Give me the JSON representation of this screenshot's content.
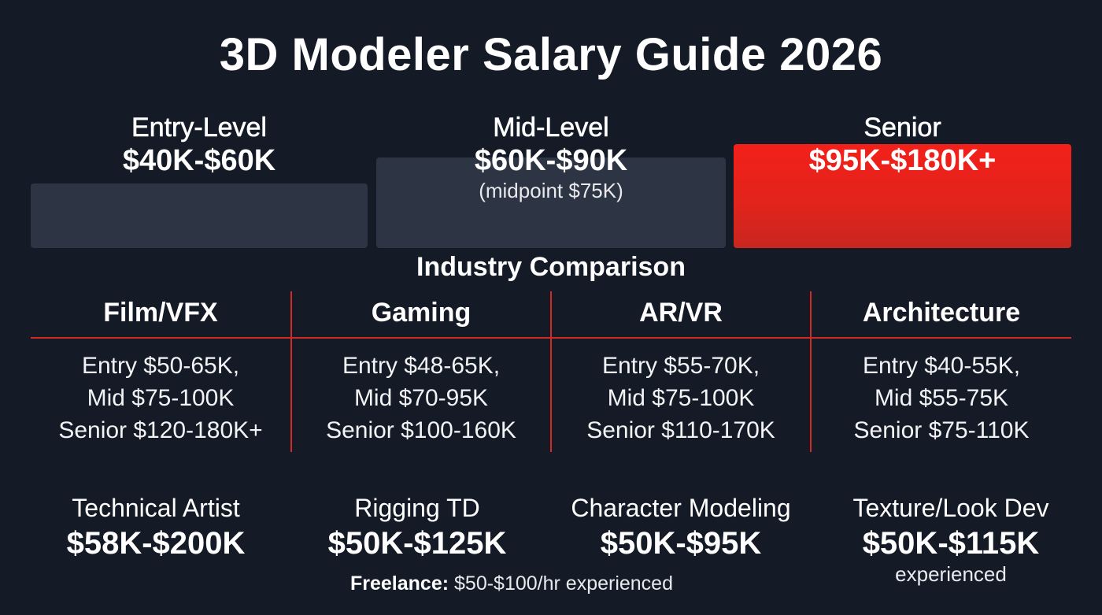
{
  "title": "3D Modeler Salary Guide 2026",
  "tiers": {
    "entry": {
      "name": "Entry-Level",
      "range": "$40K-$60K",
      "color": "#2d3443"
    },
    "mid": {
      "name": "Mid-Level",
      "range": "$60K-$90K",
      "note": "(midpoint $75K)",
      "color": "#2d3443"
    },
    "senior": {
      "name": "Senior",
      "range": "$95K-$180K+",
      "color": "#e8231c"
    }
  },
  "industry": {
    "title": "Industry Comparison",
    "accent_color": "#d32a24",
    "columns": [
      {
        "name": "Film/VFX",
        "lines": [
          "Entry $50-65K,",
          "Mid $75-100K",
          "Senior $120-180K+"
        ]
      },
      {
        "name": "Gaming",
        "lines": [
          "Entry $48-65K,",
          "Mid $70-95K",
          "Senior $100-160K"
        ]
      },
      {
        "name": "AR/VR",
        "lines": [
          "Entry $55-70K,",
          "Mid $75-100K",
          "Senior $110-170K"
        ]
      },
      {
        "name": "Architecture",
        "lines": [
          "Entry $40-55K,",
          "Mid $55-75K",
          "Senior $75-110K"
        ]
      }
    ]
  },
  "roles": [
    {
      "name": "Technical Artist",
      "range": "$58K-$200K"
    },
    {
      "name": "Rigging TD",
      "range": "$50K-$125K"
    },
    {
      "name": "Character Modeling",
      "range": "$50K-$95K"
    },
    {
      "name": "Texture/Look Dev",
      "range": "$50K-$115K",
      "note": "experienced"
    }
  ],
  "freelance": {
    "label": "Freelance:",
    "value": "$50-$100/hr experienced"
  }
}
